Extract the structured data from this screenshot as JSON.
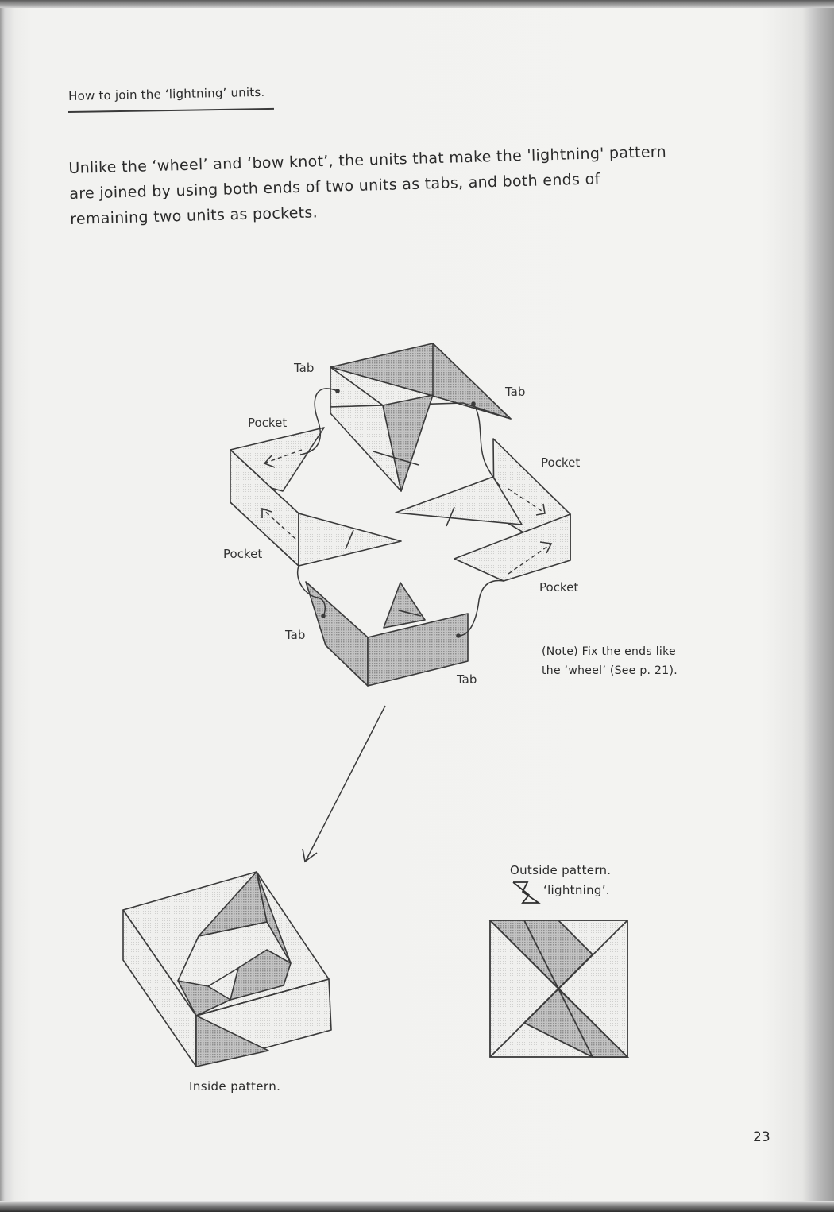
{
  "heading": "How to join the ‘lightning’ units.",
  "intro": [
    "Unlike the ‘wheel’ and ‘bow knot’, the units that make the 'lightning' pattern",
    "are joined by using both ends of two units as tabs, and both ends of",
    "remaining two units as pockets."
  ],
  "diagram_labels": {
    "tab_top_left": "Tab",
    "tab_top_right": "Tab",
    "pocket_upper_left": "Pocket",
    "pocket_upper_right": "Pocket",
    "pocket_lower_left": "Pocket",
    "pocket_lower_right": "Pocket",
    "tab_bottom_left": "Tab",
    "tab_bottom_right": "Tab"
  },
  "note": [
    "(Note) Fix the ends like",
    "the ‘wheel’ (See p. 21)."
  ],
  "captions": {
    "inside": "Inside pattern.",
    "outside_line1": "Outside pattern.",
    "outside_line2": "‘lightning’."
  },
  "page_number": "23",
  "colors": {
    "fold_shade": "#a9a9a9",
    "light_face": "#ececea",
    "line": "#3a3a3a"
  }
}
